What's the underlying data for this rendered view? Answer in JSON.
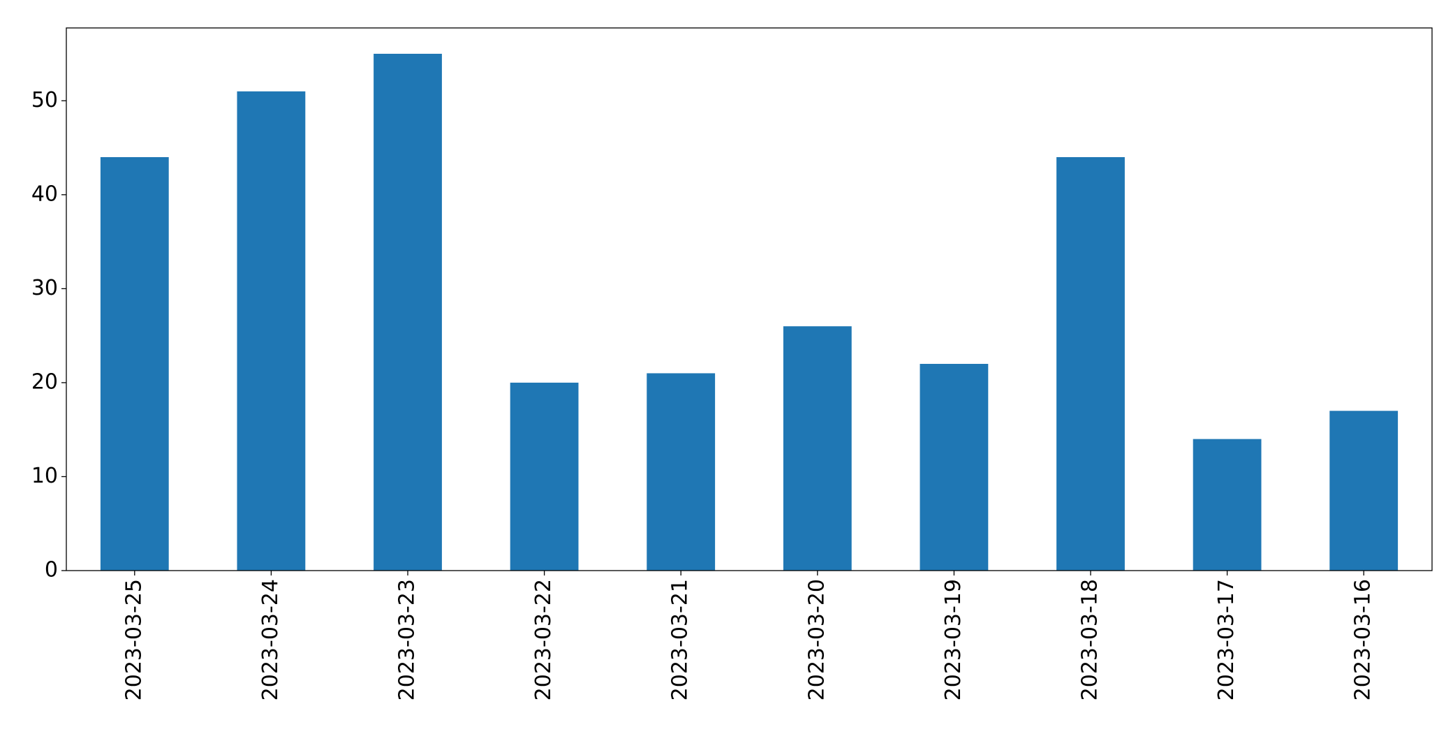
{
  "chart_data": {
    "type": "bar",
    "categories": [
      "2023-03-25",
      "2023-03-24",
      "2023-03-23",
      "2023-03-22",
      "2023-03-21",
      "2023-03-20",
      "2023-03-19",
      "2023-03-18",
      "2023-03-17",
      "2023-03-16"
    ],
    "values": [
      44,
      51,
      55,
      20,
      21,
      26,
      22,
      44,
      14,
      17
    ],
    "color": "#1f77b4",
    "ylim": [
      0,
      57.75
    ],
    "yticks": [
      0,
      10,
      20,
      30,
      40,
      50
    ],
    "grid": false
  }
}
